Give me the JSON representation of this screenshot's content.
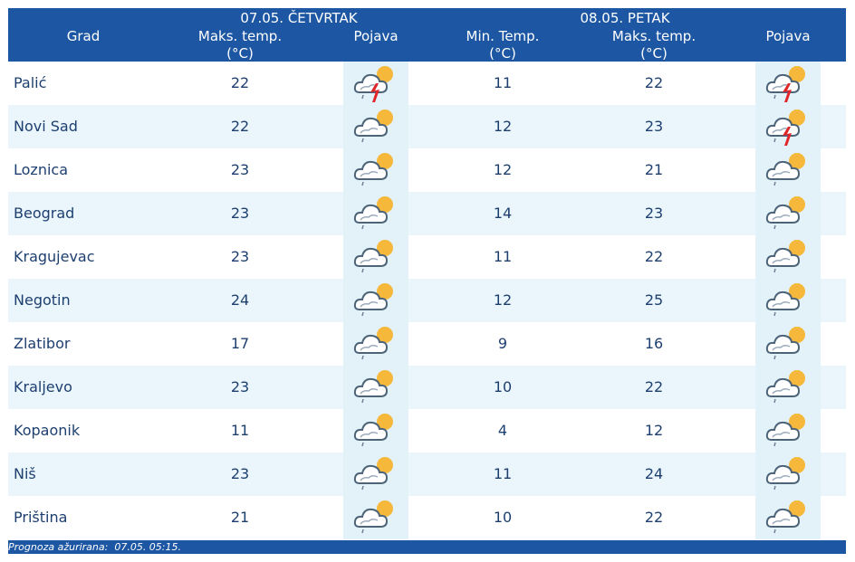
{
  "header": {
    "day1": "07.05. ČETVRTAK",
    "day2": "08.05. PETAK",
    "columns": [
      {
        "label": "Grad"
      },
      {
        "label": "Maks. temp.",
        "unit": "(°C)"
      },
      {
        "label": "Pojava"
      },
      {
        "label": "Min. Temp.",
        "unit": "(°C)"
      },
      {
        "label": "Maks. temp.",
        "unit": "(°C)"
      },
      {
        "label": "Pojava"
      }
    ]
  },
  "table": {
    "rows": [
      [
        "Palić",
        22,
        11,
        22
      ],
      [
        "Novi Sad",
        22,
        12,
        23
      ],
      [
        "Loznica",
        23,
        12,
        21
      ],
      [
        "Beograd",
        23,
        14,
        23
      ],
      [
        "Kragujevac",
        23,
        11,
        22
      ],
      [
        "Negotin",
        24,
        12,
        25
      ],
      [
        "Zlatibor",
        17,
        9,
        16
      ],
      [
        "Kraljevo",
        23,
        10,
        22
      ],
      [
        "Kopaonik",
        11,
        4,
        12
      ],
      [
        "Niš",
        23,
        11,
        24
      ],
      [
        "Priština",
        21,
        10,
        22
      ]
    ]
  },
  "footer": {
    "label": "Prognoza ažurirana:",
    "time": "07.05. 05:15."
  }
}
